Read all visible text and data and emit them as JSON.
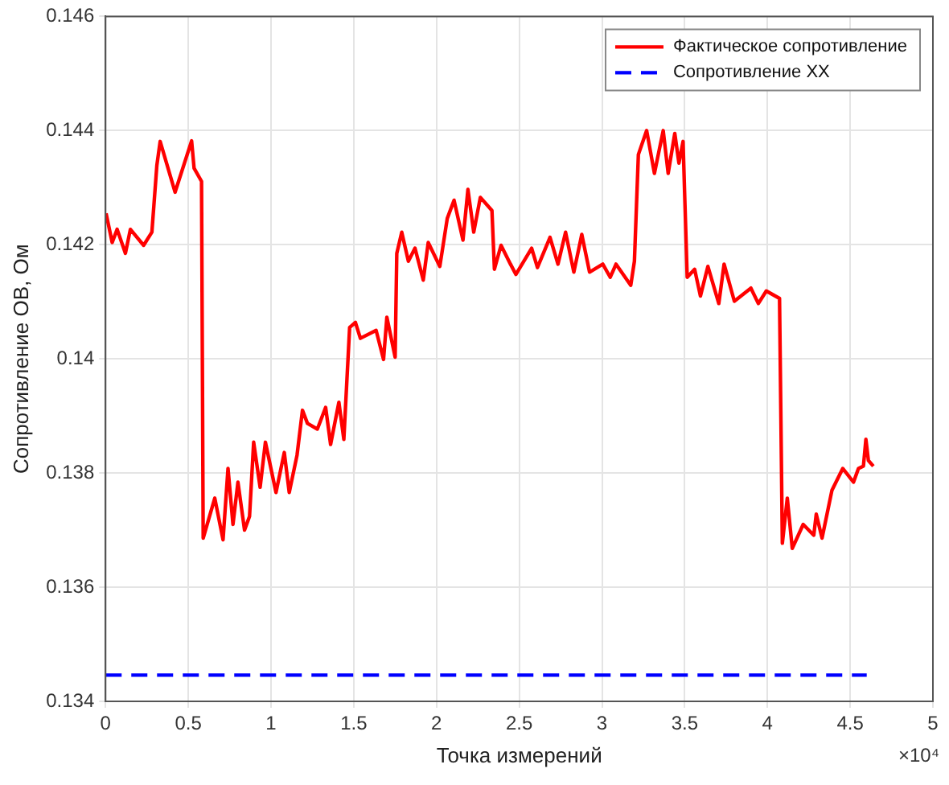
{
  "chart_data": {
    "type": "line",
    "xlabel": "Точка измерений",
    "ylabel": "Сопротивление ОВ, Ом",
    "annotations": [
      "×10⁴"
    ],
    "xlim": [
      0,
      5
    ],
    "xticks": [
      0,
      0.5,
      1,
      1.5,
      2,
      2.5,
      3,
      3.5,
      4,
      4.5,
      5
    ],
    "ylim": [
      0.134,
      0.146
    ],
    "yticks": [
      0.134,
      0.136,
      0.138,
      0.14,
      0.142,
      0.144,
      0.146
    ],
    "grid": true,
    "legend": "top right",
    "marker": "none",
    "series": [
      {
        "name": "Фактическое сопротивление",
        "color": "#ff0000",
        "line_style": "solid",
        "x": [
          0.003,
          0.04,
          0.07,
          0.12,
          0.15,
          0.23,
          0.28,
          0.31,
          0.33,
          0.42,
          0.52,
          0.535,
          0.58,
          0.59,
          0.66,
          0.71,
          0.74,
          0.77,
          0.8,
          0.84,
          0.87,
          0.895,
          0.934,
          0.966,
          1.03,
          1.08,
          1.11,
          1.157,
          1.19,
          1.22,
          1.28,
          1.33,
          1.36,
          1.41,
          1.44,
          1.475,
          1.51,
          1.54,
          1.635,
          1.68,
          1.7,
          1.75,
          1.76,
          1.79,
          1.83,
          1.87,
          1.92,
          1.95,
          2.02,
          2.065,
          2.106,
          2.16,
          2.19,
          2.225,
          2.265,
          2.335,
          2.35,
          2.39,
          2.447,
          2.48,
          2.575,
          2.61,
          2.686,
          2.734,
          2.78,
          2.83,
          2.878,
          2.925,
          3.005,
          3.05,
          3.085,
          3.174,
          3.196,
          3.22,
          3.27,
          3.317,
          3.37,
          3.4,
          3.44,
          3.465,
          3.49,
          3.515,
          3.56,
          3.595,
          3.64,
          3.706,
          3.738,
          3.8,
          3.9,
          3.945,
          3.993,
          4.073,
          4.09,
          4.12,
          4.15,
          4.216,
          4.28,
          4.295,
          4.33,
          4.36,
          4.39,
          4.455,
          4.52,
          4.55,
          4.58,
          4.595,
          4.61,
          4.64
        ],
        "values": [
          0.14255,
          0.14204,
          0.14227,
          0.14185,
          0.14227,
          0.14199,
          0.14222,
          0.14339,
          0.14381,
          0.14292,
          0.14382,
          0.14334,
          0.14311,
          0.13686,
          0.13756,
          0.13683,
          0.13808,
          0.1371,
          0.13784,
          0.137,
          0.13724,
          0.13854,
          0.13775,
          0.13854,
          0.13766,
          0.13836,
          0.13766,
          0.13831,
          0.1391,
          0.13887,
          0.13877,
          0.13915,
          0.1385,
          0.13924,
          0.13859,
          0.14055,
          0.14064,
          0.14036,
          0.1405,
          0.13999,
          0.14073,
          0.14003,
          0.14185,
          0.14222,
          0.14171,
          0.14194,
          0.14138,
          0.14204,
          0.14162,
          0.14246,
          0.14278,
          0.14208,
          0.14297,
          0.14222,
          0.14283,
          0.1426,
          0.14157,
          0.14199,
          0.14166,
          0.14148,
          0.14194,
          0.1416,
          0.14213,
          0.14166,
          0.14222,
          0.14152,
          0.14218,
          0.14152,
          0.14166,
          0.14143,
          0.14166,
          0.14129,
          0.14171,
          0.14358,
          0.144,
          0.14325,
          0.144,
          0.14325,
          0.14395,
          0.14343,
          0.14381,
          0.14143,
          0.14157,
          0.1411,
          0.14162,
          0.14097,
          0.14166,
          0.14101,
          0.14124,
          0.14097,
          0.14119,
          0.14106,
          0.13677,
          0.13756,
          0.13668,
          0.1371,
          0.13691,
          0.13728,
          0.13686,
          0.13728,
          0.1377,
          0.13808,
          0.13784,
          0.13808,
          0.13812,
          0.13859,
          0.13822,
          0.13812
        ]
      },
      {
        "name": "Сопротивление XX",
        "color": "#0000ff",
        "line_style": "dashed",
        "x": [
          0,
          4.6
        ],
        "values": [
          0.13446,
          0.13446
        ]
      }
    ]
  }
}
